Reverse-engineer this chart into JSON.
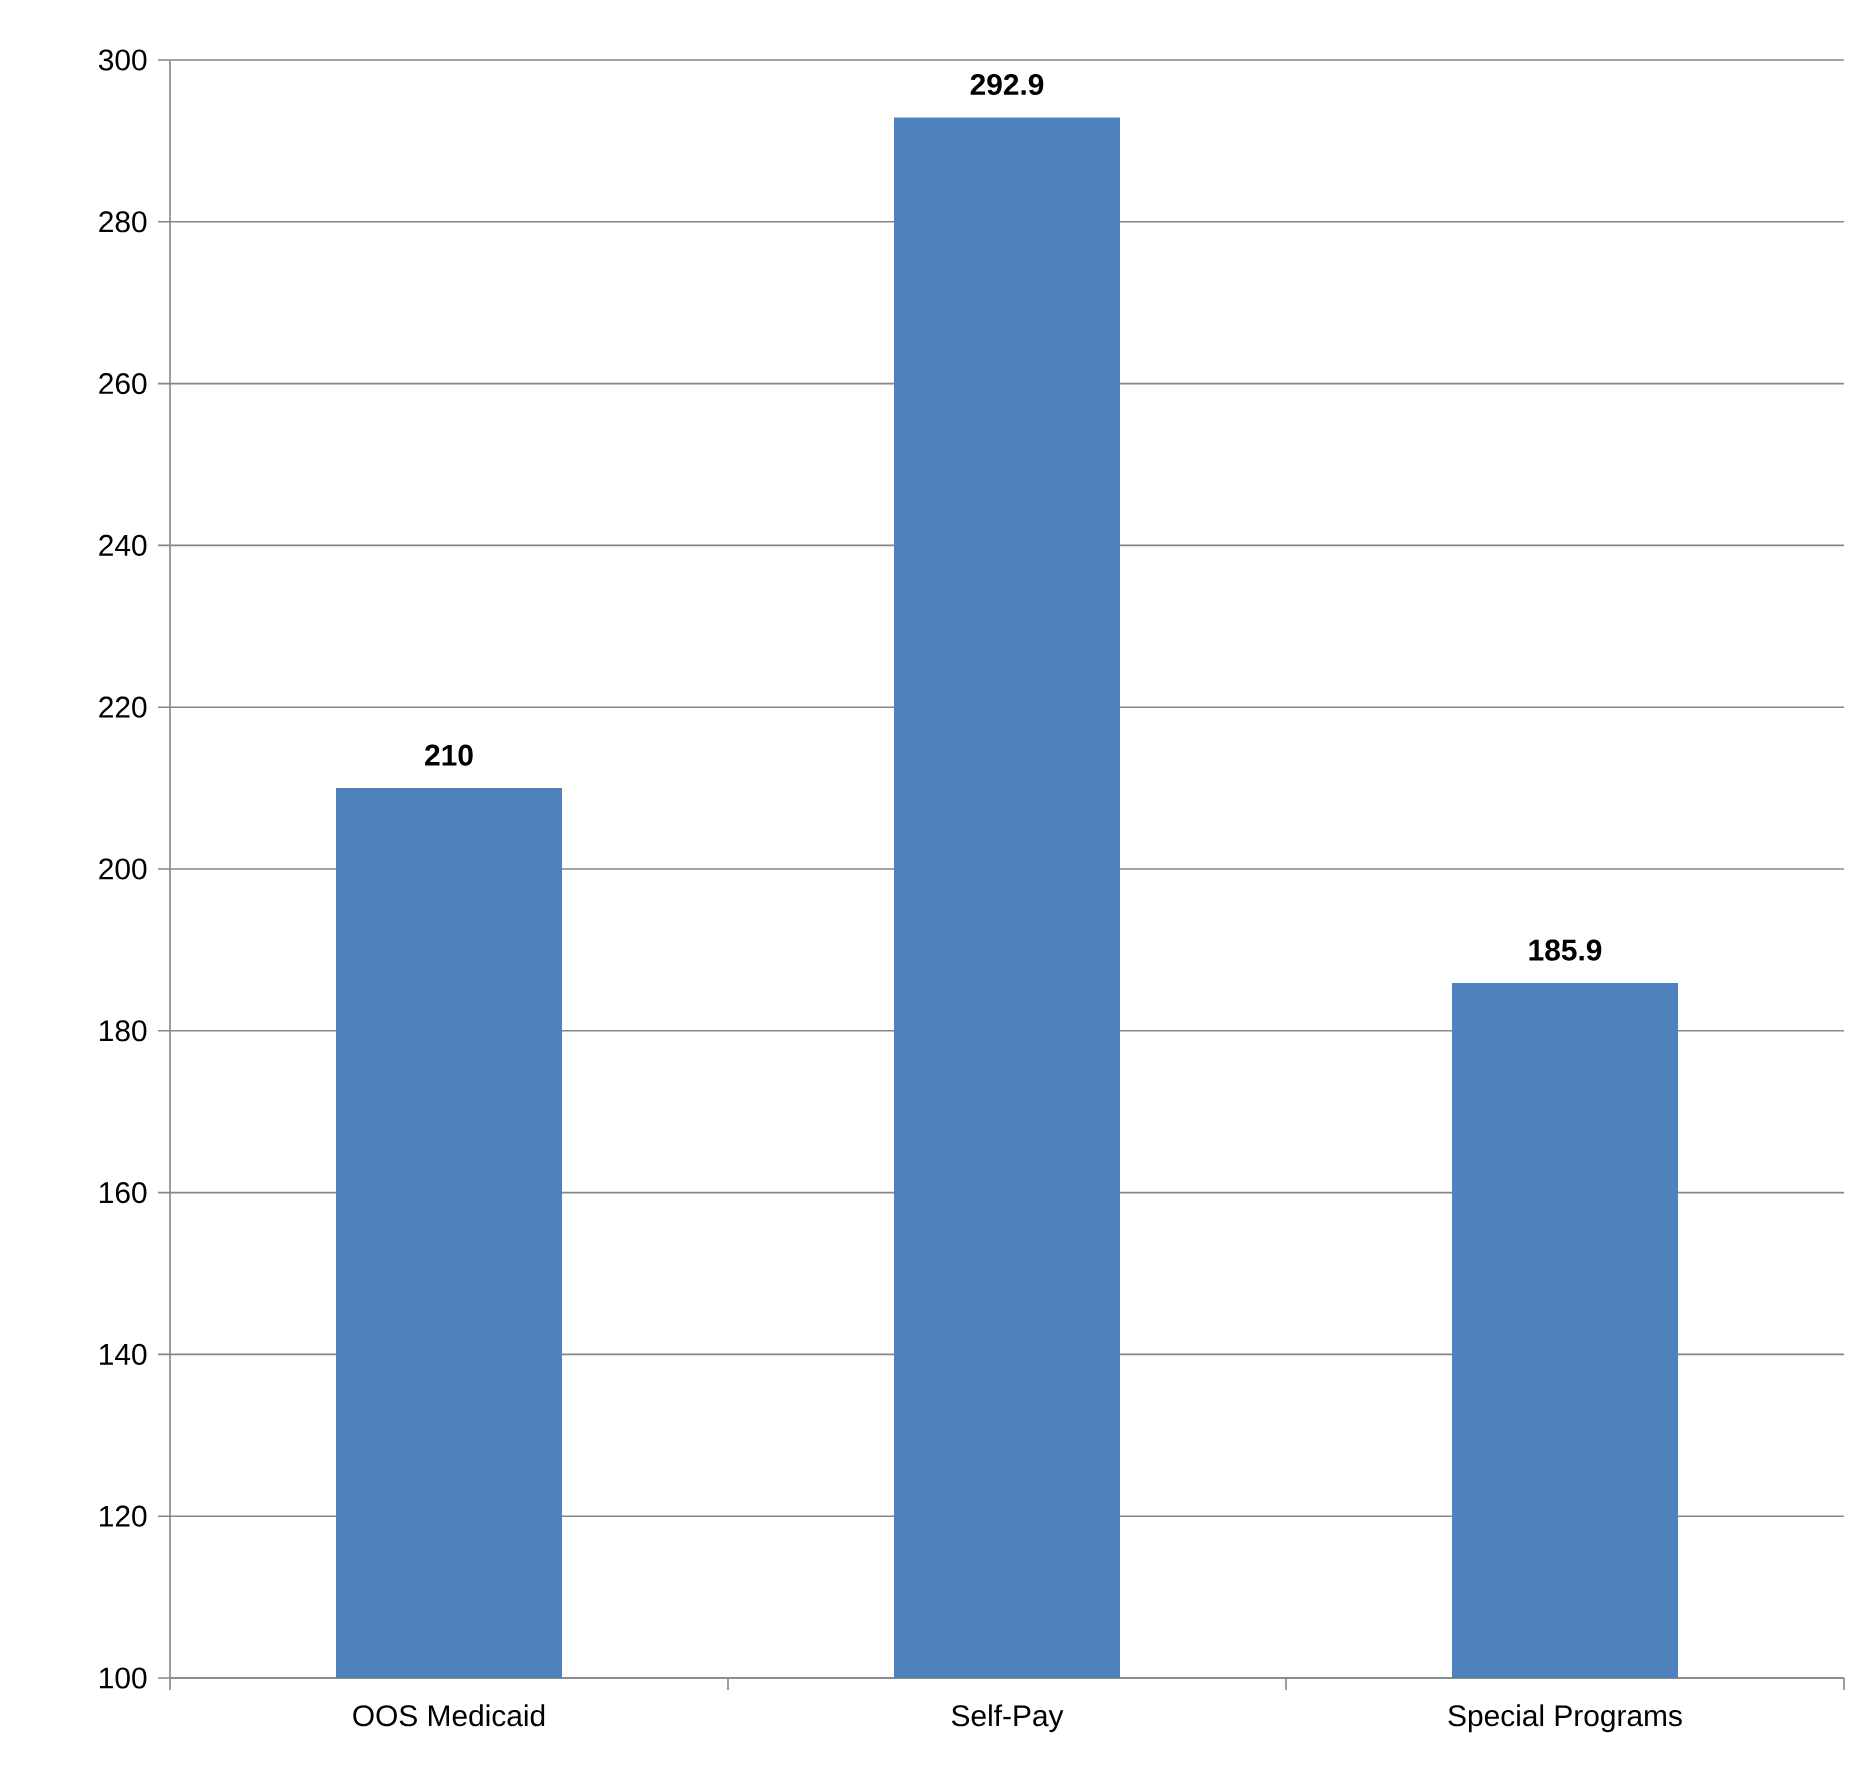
{
  "chart_data": {
    "type": "bar",
    "categories": [
      "OOS Medicaid",
      "Self-Pay",
      "Special Programs"
    ],
    "values": [
      210,
      292.9,
      185.9
    ],
    "color": "#4f81bd",
    "ylim": [
      100,
      300
    ],
    "yticks": [
      100,
      120,
      140,
      160,
      180,
      200,
      220,
      240,
      260,
      280,
      300
    ],
    "grid": "y",
    "data_labels": true
  }
}
